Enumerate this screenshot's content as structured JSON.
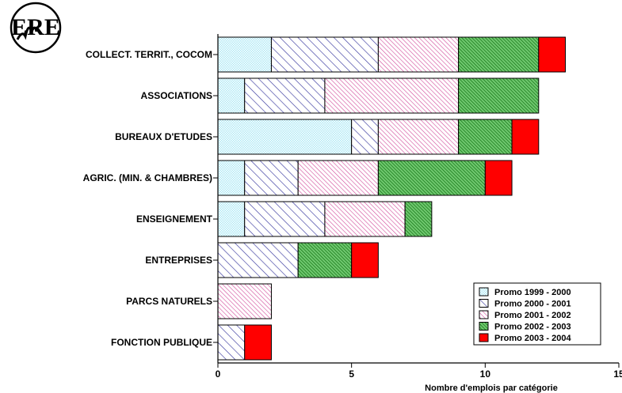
{
  "logo": {
    "text": "ERE"
  },
  "chart_data": {
    "type": "bar",
    "orientation": "horizontal",
    "stacked": true,
    "title": "",
    "xlabel": "Nombre d'emplois par catégorie",
    "ylabel": "",
    "xlim": [
      0,
      15
    ],
    "xticks": [
      0,
      5,
      10,
      15
    ],
    "grid": false,
    "legend_position": "bottom-right",
    "categories": [
      "COLLECT. TERRIT., COCOM",
      "ASSOCIATIONS",
      "BUREAUX D'ETUDES",
      "AGRIC. (MIN. & CHAMBRES)",
      "ENSEIGNEMENT",
      "ENTREPRISES",
      "PARCS NATURELS",
      "FONCTION PUBLIQUE"
    ],
    "series": [
      {
        "name": "Promo 1999 - 2000",
        "color": "#aee8f5",
        "pattern": "dots",
        "values": [
          2,
          1,
          5,
          1,
          1,
          0,
          0,
          0
        ]
      },
      {
        "name": "Promo 2000 - 2001",
        "color": "#3a3aa0",
        "pattern": "hatch",
        "values": [
          4,
          3,
          1,
          2,
          3,
          3,
          0,
          1
        ]
      },
      {
        "name": "Promo 2001 - 2002",
        "color": "#d24a9a",
        "pattern": "hatch",
        "values": [
          3,
          5,
          3,
          3,
          3,
          0,
          2,
          0
        ]
      },
      {
        "name": "Promo 2002 - 2003",
        "color": "#1a8f1a",
        "pattern": "dense",
        "values": [
          3,
          3,
          2,
          4,
          1,
          2,
          0,
          0
        ]
      },
      {
        "name": "Promo 2003 - 2004",
        "color": "#ff0000",
        "pattern": "solid",
        "values": [
          1,
          0,
          1,
          1,
          0,
          1,
          0,
          1
        ]
      }
    ]
  }
}
